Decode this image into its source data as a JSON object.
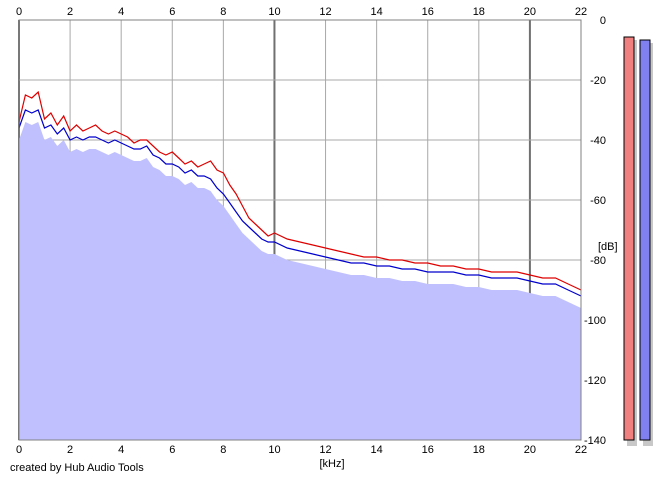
{
  "chart_data": {
    "type": "area",
    "xlabel": "[kHz]",
    "ylabel": "[dB]",
    "xlim": [
      0,
      22
    ],
    "ylim": [
      -140,
      0
    ],
    "x_ticks": [
      "0",
      "2",
      "4",
      "6",
      "8",
      "10",
      "12",
      "14",
      "16",
      "18",
      "20",
      "22"
    ],
    "y_ticks": [
      "0",
      "-20",
      "-40",
      "-60",
      "-80",
      "-100",
      "-120",
      "-140"
    ],
    "grid": true,
    "series": [
      {
        "color": "#dd0000",
        "x": [
          0,
          0.25,
          0.5,
          0.75,
          1,
          1.25,
          1.5,
          1.75,
          2,
          2.25,
          2.5,
          2.75,
          3,
          3.25,
          3.5,
          3.75,
          4,
          4.25,
          4.5,
          4.75,
          5,
          5.25,
          5.5,
          5.75,
          6,
          6.25,
          6.5,
          6.75,
          7,
          7.25,
          7.5,
          7.75,
          8,
          8.25,
          8.5,
          8.75,
          9,
          9.25,
          9.5,
          9.75,
          10,
          10.5,
          11,
          11.5,
          12,
          12.5,
          13,
          13.5,
          14,
          14.5,
          15,
          15.5,
          16,
          16.5,
          17,
          17.5,
          18,
          18.5,
          19,
          19.5,
          20,
          20.5,
          21,
          21.5,
          22
        ],
        "values": [
          -34,
          -25,
          -26,
          -24,
          -33,
          -31,
          -35,
          -32,
          -37,
          -35,
          -37,
          -36,
          -35,
          -37,
          -38,
          -37,
          -38,
          -39,
          -41,
          -40,
          -40,
          -42,
          -44,
          -45,
          -44,
          -46,
          -48,
          -47,
          -49,
          -48,
          -47,
          -50,
          -51,
          -55,
          -58,
          -62,
          -66,
          -68,
          -70,
          -72,
          -71,
          -73,
          -74,
          -75,
          -76,
          -77,
          -78,
          -79,
          -79,
          -80,
          -80,
          -81,
          -81,
          -82,
          -82,
          -83,
          -83,
          -84,
          -84,
          -84,
          -85,
          -86,
          -86,
          -88,
          -90
        ]
      },
      {
        "color": "#0000cc",
        "x": [
          0,
          0.25,
          0.5,
          0.75,
          1,
          1.25,
          1.5,
          1.75,
          2,
          2.25,
          2.5,
          2.75,
          3,
          3.25,
          3.5,
          3.75,
          4,
          4.25,
          4.5,
          4.75,
          5,
          5.25,
          5.5,
          5.75,
          6,
          6.25,
          6.5,
          6.75,
          7,
          7.25,
          7.5,
          7.75,
          8,
          8.25,
          8.5,
          8.75,
          9,
          9.25,
          9.5,
          9.75,
          10,
          10.5,
          11,
          11.5,
          12,
          12.5,
          13,
          13.5,
          14,
          14.5,
          15,
          15.5,
          16,
          16.5,
          17,
          17.5,
          18,
          18.5,
          19,
          19.5,
          20,
          20.5,
          21,
          21.5,
          22
        ],
        "values": [
          -36,
          -30,
          -31,
          -30,
          -36,
          -35,
          -38,
          -36,
          -40,
          -39,
          -40,
          -39,
          -39,
          -40,
          -41,
          -40,
          -41,
          -42,
          -43,
          -43,
          -42,
          -45,
          -46,
          -48,
          -48,
          -49,
          -51,
          -50,
          -52,
          -52,
          -53,
          -56,
          -58,
          -61,
          -64,
          -67,
          -69,
          -71,
          -73,
          -74,
          -74,
          -76,
          -77,
          -78,
          -79,
          -80,
          -81,
          -81,
          -82,
          -82,
          -83,
          -83,
          -84,
          -84,
          -84,
          -85,
          -85,
          -86,
          -86,
          -86,
          -87,
          -88,
          -88,
          -90,
          -92
        ]
      },
      {
        "color": "#c0c0ff",
        "x": [
          0,
          0.25,
          0.5,
          0.75,
          1,
          1.25,
          1.5,
          1.75,
          2,
          2.25,
          2.5,
          2.75,
          3,
          3.25,
          3.5,
          3.75,
          4,
          4.25,
          4.5,
          4.75,
          5,
          5.25,
          5.5,
          5.75,
          6,
          6.25,
          6.5,
          6.75,
          7,
          7.25,
          7.5,
          7.75,
          8,
          8.25,
          8.5,
          8.75,
          9,
          9.25,
          9.5,
          9.75,
          10,
          10.5,
          11,
          11.5,
          12,
          12.5,
          13,
          13.5,
          14,
          14.5,
          15,
          15.5,
          16,
          16.5,
          17,
          17.5,
          18,
          18.5,
          19,
          19.5,
          20,
          20.5,
          21,
          21.5,
          22
        ],
        "values": [
          -40,
          -34,
          -35,
          -34,
          -40,
          -39,
          -42,
          -40,
          -44,
          -43,
          -44,
          -43,
          -43,
          -44,
          -45,
          -44,
          -45,
          -46,
          -47,
          -47,
          -46,
          -49,
          -50,
          -52,
          -52,
          -53,
          -55,
          -54,
          -56,
          -56,
          -57,
          -60,
          -62,
          -65,
          -68,
          -71,
          -73,
          -75,
          -77,
          -78,
          -78,
          -80,
          -81,
          -82,
          -83,
          -84,
          -85,
          -85,
          -86,
          -86,
          -87,
          -87,
          -88,
          -88,
          -88,
          -89,
          -89,
          -90,
          -90,
          -90,
          -91,
          -92,
          -92,
          -94,
          -96
        ]
      }
    ],
    "level_meters": [
      {
        "color": "#f08080",
        "value_db": -3
      },
      {
        "color": "#8080f0",
        "value_db": -4
      }
    ],
    "credit": "created by Hub Audio Tools"
  }
}
